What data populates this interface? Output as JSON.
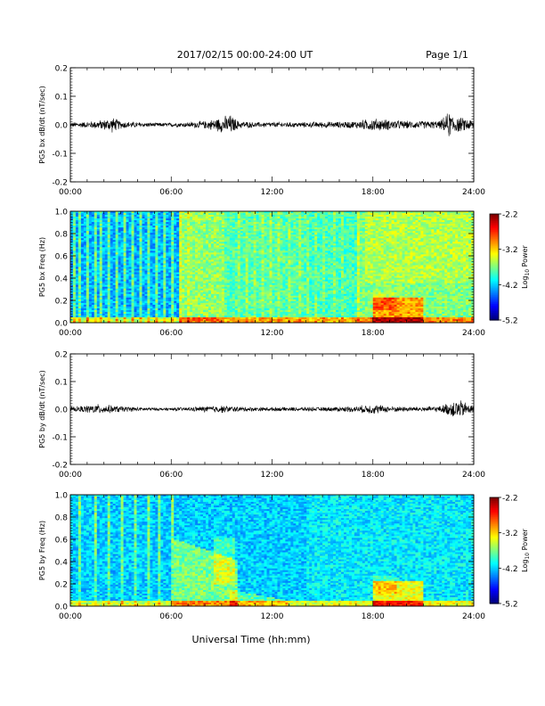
{
  "header": {
    "title": "2017/02/15  00:00-24:00 UT",
    "page": "Page 1/1"
  },
  "xlabel": "Universal Time (hh:mm)",
  "chart_data": [
    {
      "type": "line",
      "ylabel": "PG5 bx dB/dt (nT/sec)",
      "ylim": [
        -0.2,
        0.2
      ],
      "yticks": [
        "0.2",
        "0.1",
        "0.0",
        "-0.1",
        "-0.2"
      ],
      "xticks": [
        "00:00",
        "06:00",
        "12:00",
        "18:00",
        "24:00"
      ],
      "xlim": [
        0,
        24
      ],
      "series": [
        {
          "x": [
            0,
            1,
            2,
            2.5,
            3,
            4,
            5,
            6,
            7,
            8,
            9,
            9.5,
            10,
            11,
            12,
            13,
            14,
            15,
            16,
            17,
            18,
            19,
            20,
            21,
            22,
            22.5,
            23,
            24
          ],
          "y": [
            0.01,
            0.012,
            0.02,
            0.03,
            0.015,
            0.01,
            0.008,
            0.008,
            0.01,
            0.015,
            0.03,
            0.04,
            0.015,
            0.01,
            0.01,
            0.01,
            0.01,
            0.012,
            0.012,
            0.015,
            0.025,
            0.02,
            0.015,
            0.015,
            0.015,
            0.05,
            0.03,
            0.02
          ]
        }
      ]
    },
    {
      "type": "heatmap",
      "ylabel": "PG5 bx Freq (Hz)",
      "ylim": [
        0,
        1.0
      ],
      "yticks": [
        "1.0",
        "0.8",
        "0.6",
        "0.4",
        "0.2",
        "0.0"
      ],
      "xticks": [
        "00:00",
        "06:00",
        "12:00",
        "18:00",
        "24:00"
      ],
      "colorbar": {
        "label": "Log10 Power",
        "ticks": [
          "-2.2",
          "-3.2",
          "-4.2",
          "-5.2"
        ],
        "range": [
          -5.2,
          -2.2
        ]
      }
    },
    {
      "type": "line",
      "ylabel": "PG5 by dB/dt (nT/sec)",
      "ylim": [
        -0.2,
        0.2
      ],
      "yticks": [
        "0.2",
        "0.1",
        "0.0",
        "-0.1",
        "-0.2"
      ],
      "xticks": [
        "00:00",
        "06:00",
        "12:00",
        "18:00",
        "24:00"
      ],
      "xlim": [
        0,
        24
      ],
      "series": [
        {
          "x": [
            0,
            1,
            1.5,
            2,
            3,
            4,
            5,
            6,
            7,
            8,
            9,
            10,
            11,
            12,
            13,
            14,
            15,
            16,
            17,
            18,
            19,
            20,
            21,
            22,
            23,
            24
          ],
          "y": [
            0.008,
            0.015,
            0.02,
            0.018,
            0.012,
            0.008,
            0.006,
            0.006,
            0.008,
            0.012,
            0.015,
            0.01,
            0.008,
            0.008,
            0.008,
            0.008,
            0.008,
            0.01,
            0.012,
            0.02,
            0.012,
            0.01,
            0.01,
            0.012,
            0.04,
            0.015
          ]
        }
      ]
    },
    {
      "type": "heatmap",
      "ylabel": "PG5 by Freq (Hz)",
      "ylim": [
        0,
        1.0
      ],
      "yticks": [
        "1.0",
        "0.8",
        "0.6",
        "0.4",
        "0.2",
        "0.0"
      ],
      "xticks": [
        "00:00",
        "06:00",
        "12:00",
        "18:00",
        "24:00"
      ],
      "colorbar": {
        "label": "Log10 Power",
        "ticks": [
          "-2.2",
          "-3.2",
          "-4.2",
          "-5.2"
        ],
        "range": [
          -5.2,
          -2.2
        ]
      }
    }
  ]
}
